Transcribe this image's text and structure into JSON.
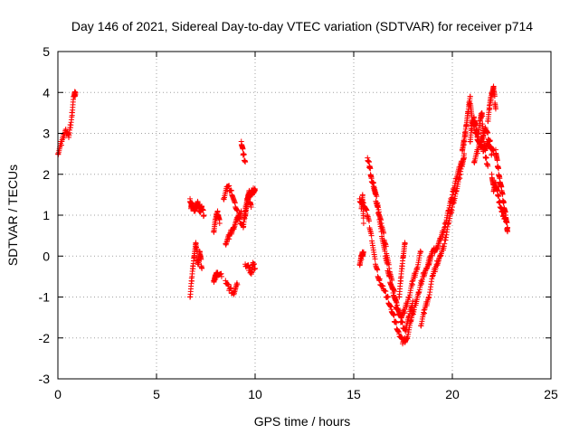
{
  "chart_data": {
    "type": "scatter",
    "title": "Day 146 of 2021, Sidereal Day-to-day VTEC variation (SDTVAR) for receiver p714",
    "xlabel": "GPS time / hours",
    "ylabel": "SDTVAR / TECUs",
    "xlim": [
      0,
      25
    ],
    "ylim": [
      -3,
      5
    ],
    "xticks": [
      "0",
      "5",
      "10",
      "15",
      "20",
      "25"
    ],
    "yticks": [
      "-3",
      "-2",
      "-1",
      "0",
      "1",
      "2",
      "3",
      "4",
      "5"
    ],
    "grid": true,
    "marker": "+",
    "colors": {
      "series": "#ff0000",
      "grid": "#a0a0a0",
      "frame": "#000000"
    },
    "series": [
      {
        "name": "SDTVAR",
        "segments": [
          {
            "x": [
              0.0,
              0.2,
              0.4,
              0.55,
              0.7,
              0.8,
              0.9
            ],
            "y": [
              2.5,
              2.8,
              3.1,
              2.9,
              3.4,
              3.9,
              4.0
            ]
          },
          {
            "x": [
              6.7,
              6.75,
              6.8,
              6.9,
              7.0,
              7.1,
              7.2,
              7.3,
              7.4
            ],
            "y": [
              1.4,
              1.2,
              1.3,
              1.1,
              1.2,
              1.3,
              1.1,
              1.2,
              1.0
            ]
          },
          {
            "x": [
              6.7,
              6.8,
              6.9,
              7.0,
              7.1,
              7.2,
              7.3
            ],
            "y": [
              -1.0,
              -0.5,
              0.0,
              0.3,
              -0.2,
              0.1,
              -0.3
            ]
          },
          {
            "x": [
              7.9,
              8.0,
              8.1,
              8.2
            ],
            "y": [
              0.6,
              0.9,
              1.1,
              0.8
            ]
          },
          {
            "x": [
              7.9,
              8.0,
              8.1,
              8.3
            ],
            "y": [
              -0.6,
              -0.5,
              -0.4,
              -0.5
            ]
          },
          {
            "x": [
              8.4,
              8.6,
              8.8,
              9.0,
              9.2,
              9.4,
              9.5,
              9.6,
              9.7,
              9.8
            ],
            "y": [
              1.4,
              1.7,
              1.6,
              1.2,
              0.9,
              0.7,
              1.1,
              1.4,
              1.5,
              1.2
            ]
          },
          {
            "x": [
              8.5,
              8.7,
              8.9,
              9.1,
              9.3
            ],
            "y": [
              0.3,
              0.5,
              0.7,
              0.9,
              1.1
            ]
          },
          {
            "x": [
              8.5,
              8.7,
              8.9,
              9.1
            ],
            "y": [
              -0.6,
              -0.8,
              -0.9,
              -0.7
            ]
          },
          {
            "x": [
              9.3,
              9.4,
              9.5
            ],
            "y": [
              2.8,
              2.5,
              2.3
            ]
          },
          {
            "x": [
              9.5,
              9.6,
              9.7,
              9.8,
              9.9,
              10.0
            ],
            "y": [
              1.0,
              1.3,
              1.6,
              1.5,
              1.6,
              1.6
            ]
          },
          {
            "x": [
              9.5,
              9.7,
              9.8,
              9.9,
              10.0
            ],
            "y": [
              -0.2,
              -0.3,
              -0.4,
              -0.2,
              -0.3
            ]
          },
          {
            "x": [
              15.3,
              15.4,
              15.45,
              15.5
            ],
            "y": [
              1.4,
              1.2,
              1.5,
              0.8
            ]
          },
          {
            "x": [
              15.3,
              15.4,
              15.5
            ],
            "y": [
              -0.2,
              0.0,
              0.1
            ]
          },
          {
            "x": [
              15.5,
              15.7,
              15.9,
              16.1,
              16.3,
              16.5,
              16.7,
              16.9,
              17.1,
              17.3,
              17.5,
              17.7,
              17.9,
              18.1,
              18.3,
              18.5,
              18.7,
              18.9
            ],
            "y": [
              1.3,
              1.0,
              0.5,
              -0.2,
              -0.6,
              -0.8,
              -1.0,
              -1.3,
              -1.6,
              -1.9,
              -2.1,
              -2.0,
              -1.6,
              -1.2,
              -0.9,
              -0.5,
              -0.3,
              0.0
            ]
          },
          {
            "x": [
              15.7,
              15.8,
              15.9,
              16.0,
              16.2,
              16.4,
              16.6,
              16.8,
              17.0,
              17.2,
              17.4,
              17.6,
              17.8,
              18.0
            ],
            "y": [
              2.4,
              2.2,
              1.9,
              1.7,
              1.2,
              0.8,
              0.3,
              -0.3,
              -0.8,
              -1.2,
              -1.6,
              -1.8,
              -1.5,
              -1.1
            ]
          },
          {
            "x": [
              16.0,
              16.2,
              16.4,
              16.6,
              16.8,
              17.0,
              17.2,
              17.4,
              17.6,
              17.8,
              18.0,
              18.2,
              18.4
            ],
            "y": [
              1.8,
              1.3,
              0.6,
              0.0,
              -0.5,
              -0.9,
              -1.3,
              -1.5,
              -1.3,
              -1.0,
              -0.6,
              -0.3,
              0.1
            ]
          },
          {
            "x": [
              17.3,
              17.4,
              17.5,
              17.6
            ],
            "y": [
              -1.0,
              -0.5,
              0.0,
              0.3
            ]
          },
          {
            "x": [
              18.4,
              18.6,
              18.8,
              19.0,
              19.2,
              19.4,
              19.6,
              19.8,
              20.0,
              20.2,
              20.4,
              20.6
            ],
            "y": [
              -1.7,
              -1.3,
              -1.0,
              -0.5,
              -0.2,
              0.0,
              0.3,
              0.8,
              1.2,
              1.6,
              2.0,
              2.5
            ]
          },
          {
            "x": [
              18.8,
              19.0,
              19.2,
              19.4,
              19.6,
              19.8,
              20.0,
              20.2,
              20.4,
              20.6
            ],
            "y": [
              -0.2,
              0.1,
              0.2,
              0.4,
              0.7,
              1.1,
              1.5,
              1.9,
              2.2,
              2.4
            ]
          },
          {
            "x": [
              20.5,
              20.6,
              20.7,
              20.8,
              20.9,
              21.0,
              21.2,
              21.4,
              21.6,
              21.8,
              22.0
            ],
            "y": [
              2.6,
              2.8,
              3.2,
              3.5,
              3.9,
              3.3,
              3.0,
              2.7,
              2.6,
              2.8,
              2.5
            ]
          },
          {
            "x": [
              20.9,
              21.0,
              21.1,
              21.2,
              21.3,
              21.4,
              21.5,
              21.6,
              21.7,
              21.8
            ],
            "y": [
              2.8,
              3.2,
              3.4,
              3.1,
              2.9,
              3.3,
              3.5,
              2.8,
              2.4,
              2.2
            ]
          },
          {
            "x": [
              21.1,
              21.3,
              21.5,
              21.7,
              21.9,
              22.1
            ],
            "y": [
              2.3,
              2.6,
              2.9,
              3.1,
              2.8,
              2.5
            ]
          },
          {
            "x": [
              21.8,
              21.9,
              22.0,
              22.1,
              22.2
            ],
            "y": [
              3.3,
              3.7,
              4.0,
              4.1,
              3.6
            ]
          },
          {
            "x": [
              22.0,
              22.1,
              22.2,
              22.3,
              22.4,
              22.5,
              22.6,
              22.7,
              22.8
            ],
            "y": [
              2.0,
              1.6,
              1.8,
              1.5,
              1.3,
              1.1,
              1.0,
              0.9,
              0.7
            ]
          },
          {
            "x": [
              22.2,
              22.3,
              22.4,
              22.5,
              22.6,
              22.7,
              22.8
            ],
            "y": [
              2.6,
              2.2,
              1.9,
              1.6,
              1.3,
              1.0,
              0.6
            ]
          }
        ]
      }
    ]
  }
}
